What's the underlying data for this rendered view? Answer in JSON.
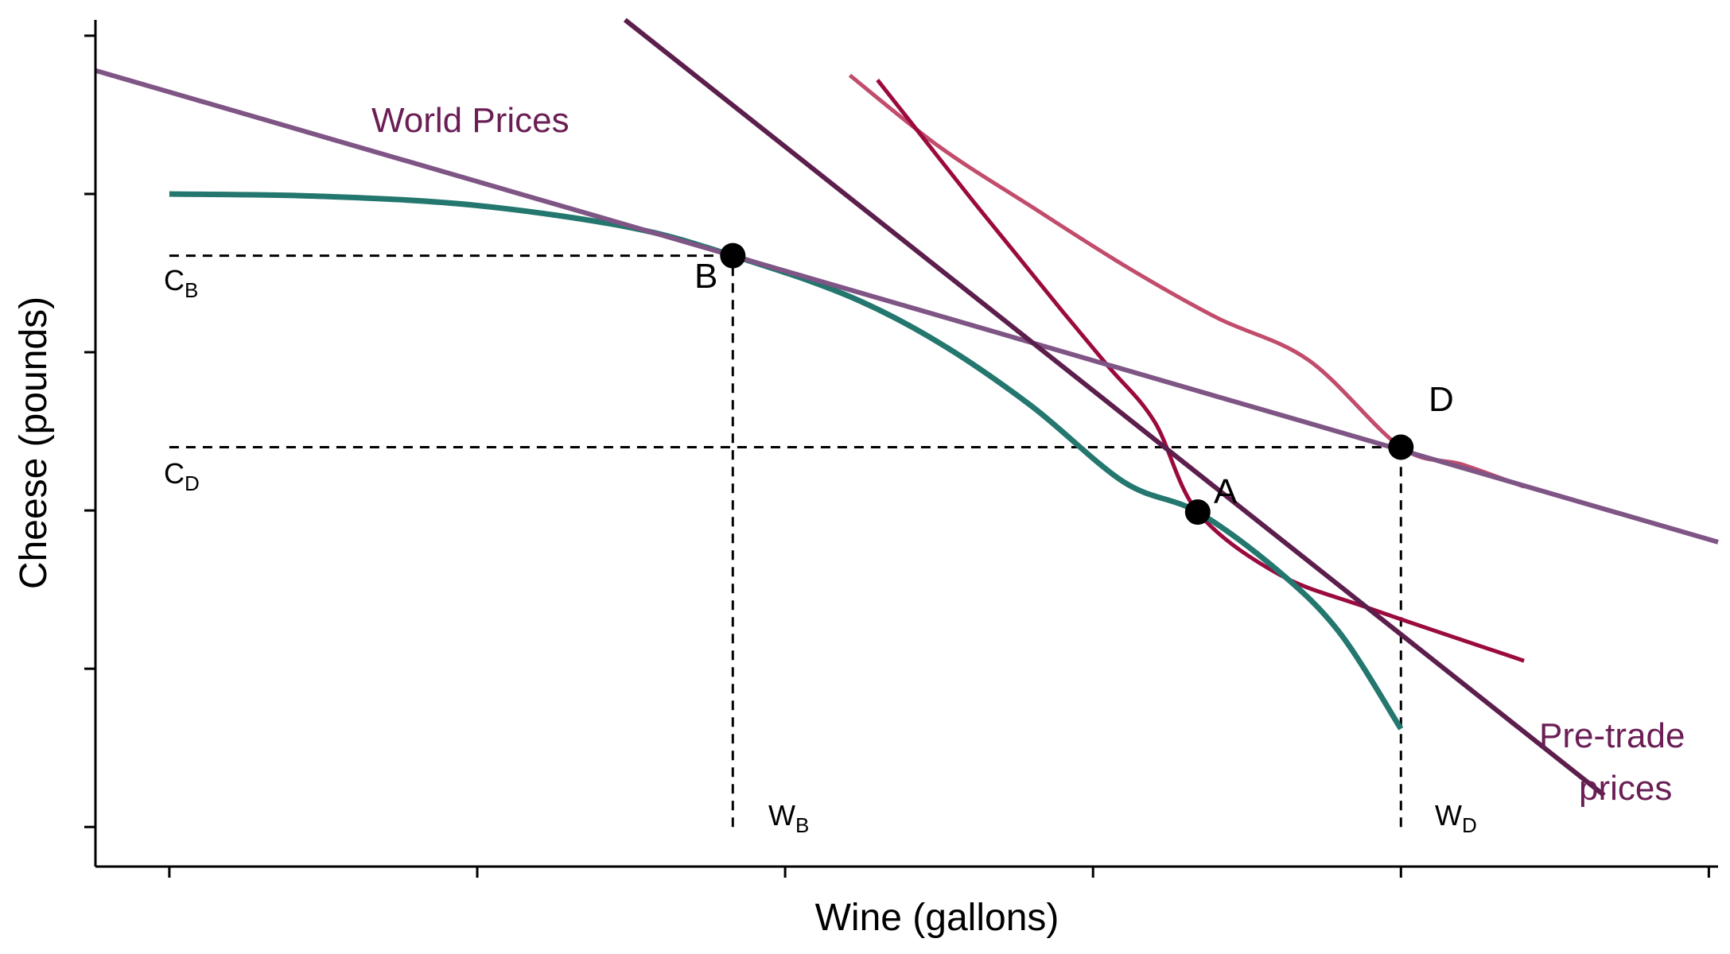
{
  "chart_data": {
    "type": "line",
    "title": "",
    "xlabel": "Wine (gallons)",
    "ylabel": "Cheese (pounds)",
    "xlim": [
      -0.24,
      5.03
    ],
    "ylim": [
      -0.25,
      5.1
    ],
    "grid": false,
    "x_ticks": [
      0,
      1,
      2,
      3,
      4,
      5
    ],
    "y_ticks": [
      0,
      1,
      2,
      3,
      4,
      5
    ],
    "series": [
      {
        "name": "",
        "role": "production possibilities frontier",
        "color": "#23776E",
        "points": [
          [
            0,
            4.0
          ],
          [
            0.5,
            3.985
          ],
          [
            1.0,
            3.927
          ],
          [
            1.5,
            3.787
          ],
          [
            1.83,
            3.61
          ],
          [
            2.2,
            3.36
          ],
          [
            2.5,
            3.06
          ],
          [
            2.8,
            2.66
          ],
          [
            3.1,
            2.18
          ],
          [
            3.34,
            1.99
          ],
          [
            3.6,
            1.62
          ],
          [
            3.8,
            1.23
          ],
          [
            4.0,
            0.62
          ]
        ]
      },
      {
        "name": "World Prices",
        "role": "world price line",
        "color": "#7F5585",
        "points": [
          [
            -0.24,
            4.78
          ],
          [
            5.03,
            1.8
          ]
        ]
      },
      {
        "name": "Pre-trade prices",
        "role": "autarky price line",
        "color": "#5C1E4C",
        "points": [
          [
            1.48,
            5.1
          ],
          [
            4.66,
            0.2
          ]
        ]
      },
      {
        "name": "",
        "role": "indifference curve through A",
        "color": "#9B0A3E",
        "points": [
          [
            2.3,
            4.72
          ],
          [
            2.45,
            4.35
          ],
          [
            2.6,
            3.98
          ],
          [
            2.75,
            3.62
          ],
          [
            2.9,
            3.26
          ],
          [
            3.05,
            2.91
          ],
          [
            3.2,
            2.56
          ],
          [
            3.34,
            1.99
          ],
          [
            3.6,
            1.6
          ],
          [
            3.9,
            1.38
          ],
          [
            4.4,
            1.05
          ]
        ]
      },
      {
        "name": "",
        "role": "indifference curve through D",
        "color": "#C24C6C",
        "points": [
          [
            2.21,
            4.75
          ],
          [
            2.5,
            4.3
          ],
          [
            2.8,
            3.92
          ],
          [
            3.1,
            3.55
          ],
          [
            3.4,
            3.22
          ],
          [
            3.7,
            2.95
          ],
          [
            4.0,
            2.4
          ],
          [
            4.2,
            2.29
          ],
          [
            4.4,
            2.15
          ]
        ]
      }
    ],
    "points": [
      {
        "label": "A",
        "x": 3.34,
        "y": 1.99
      },
      {
        "label": "B",
        "x": 1.83,
        "y": 3.61
      },
      {
        "label": "D",
        "x": 4.0,
        "y": 2.4
      }
    ],
    "reference_lines": [
      {
        "label": "C",
        "sub": "B",
        "axis": "y",
        "value": 3.61
      },
      {
        "label": "C",
        "sub": "D",
        "axis": "y",
        "value": 2.4
      },
      {
        "label": "W",
        "sub": "B",
        "axis": "x",
        "value": 1.83
      },
      {
        "label": "W",
        "sub": "D",
        "axis": "x",
        "value": 4.0
      }
    ],
    "annotations": [
      {
        "text": "World Prices",
        "color": "#6A1E55"
      },
      {
        "text_lines": [
          "Pre-trade",
          "prices"
        ],
        "color": "#6A1E55"
      }
    ]
  }
}
